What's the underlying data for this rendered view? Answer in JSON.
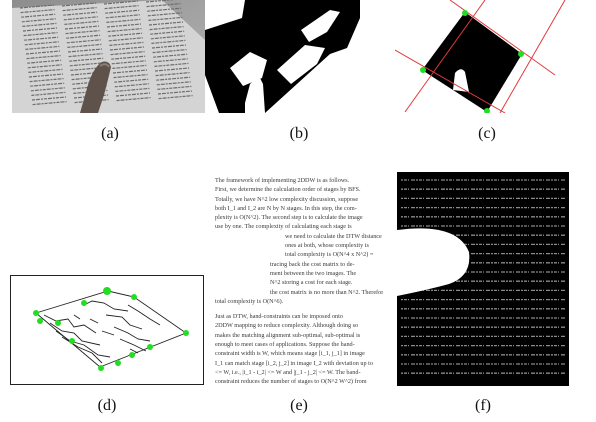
{
  "figure": {
    "panels": [
      {
        "id": "a",
        "caption": "(a)"
      },
      {
        "id": "b",
        "caption": "(b)"
      },
      {
        "id": "c",
        "caption": "(c)"
      },
      {
        "id": "d",
        "caption": "(d)"
      },
      {
        "id": "e",
        "caption": "(e)"
      },
      {
        "id": "f",
        "caption": "(f)"
      }
    ]
  },
  "panel_e_text": {
    "lines": [
      "The framework of implementing 2DDW is as follows.",
      "First, we determine the calculation order of stages by BFS.",
      "Totally, we have N^2 low complexity discussion, suppose",
      "both I_1 and I_2 are N by N stages. In this step, the com-",
      "plexity is O(N^2). The second step is to calculate the image",
      "use by one. The complexity of calculating each stage is",
      "we need to calculate the DTW distance",
      "ones at both, whose complexity is",
      "total complexity is O(N^4 x N^2) =",
      "tracing back the cost matrix to de-",
      "ment between the two images. The",
      "N^2 storing a cost for each stage.",
      "the cost matrix is no more than N^2. Therefore, the",
      "total complexity is O(N^6).",
      "Just as DTW, hand-constraints can be imposed onto",
      "2DDW mapping to reduce complexity. Although doing so",
      "makes the matching alignment sub-optimal, sub-optimal is",
      "enough to meet cases of applications. Suppose the hand-",
      "constraint width is W, which means stage [i_1, j_1] in image",
      "I_1 can match stage [i_2, j_2] in image I_2 with deviation up to",
      "<= W, i.e., |i_1 - i_2| <= W and |j_1 - j_2| <= W. The band-",
      "constraint reduces the number of stages to O(N^2 W^2) from"
    ]
  },
  "colors": {
    "marker": "#22dd22",
    "fit_line": "#e03a3a",
    "mask": "#000000",
    "background": "#ffffff",
    "photo_paper": "#cfcfcf",
    "finger": "#6a5a52"
  }
}
